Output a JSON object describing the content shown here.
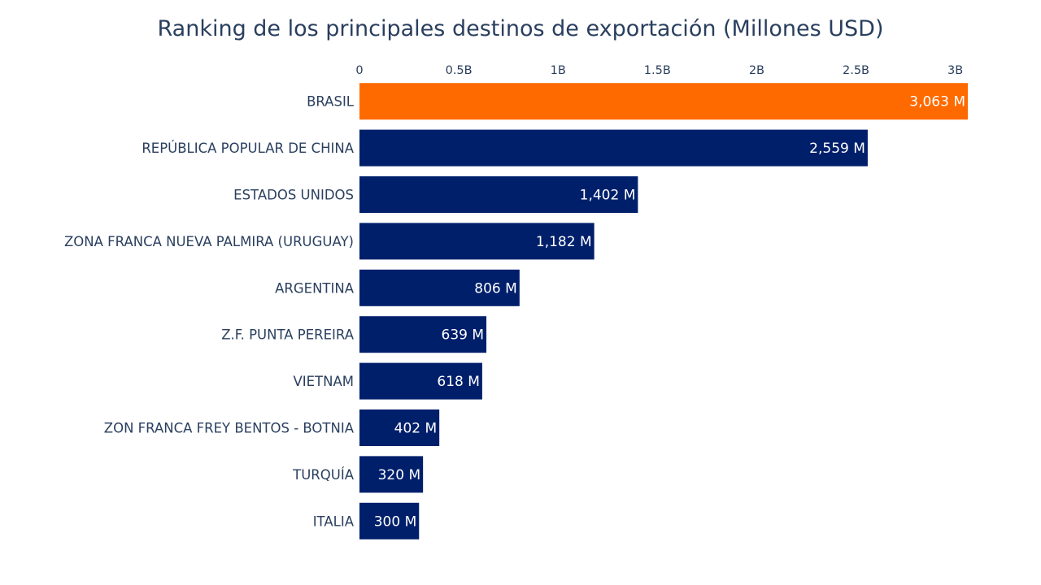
{
  "chart_data": {
    "type": "bar",
    "orientation": "horizontal",
    "title": "Ranking de los principales destinos de exportación (Millones USD)",
    "xlabel": "",
    "ylabel": "",
    "xlim": [
      0,
      3063
    ],
    "x_ticks": [
      {
        "value": 0,
        "label": "0"
      },
      {
        "value": 500,
        "label": "0.5B"
      },
      {
        "value": 1000,
        "label": "1B"
      },
      {
        "value": 1500,
        "label": "1.5B"
      },
      {
        "value": 2000,
        "label": "2B"
      },
      {
        "value": 2500,
        "label": "2.5B"
      },
      {
        "value": 3000,
        "label": "3B"
      }
    ],
    "x_axis_position": "top",
    "grid": false,
    "categories": [
      "BRASIL",
      "REPÚBLICA POPULAR DE CHINA",
      "ESTADOS UNIDOS",
      "ZONA FRANCA NUEVA PALMIRA (URUGUAY)",
      "ARGENTINA",
      "Z.F. PUNTA PEREIRA",
      "VIETNAM",
      "ZON FRANCA FREY BENTOS - BOTNIA",
      "TURQUÍA",
      "ITALIA"
    ],
    "values": [
      3063,
      2559,
      1402,
      1182,
      806,
      639,
      618,
      402,
      320,
      300
    ],
    "value_labels": [
      "3,063 M",
      "2,559 M",
      "1,402 M",
      "1,182 M",
      "806 M",
      "639 M",
      "618 M",
      "402 M",
      "320 M",
      "300 M"
    ],
    "highlight_color": "#ff6a00",
    "bar_color": "#001f6b",
    "highlight_index": 0
  }
}
